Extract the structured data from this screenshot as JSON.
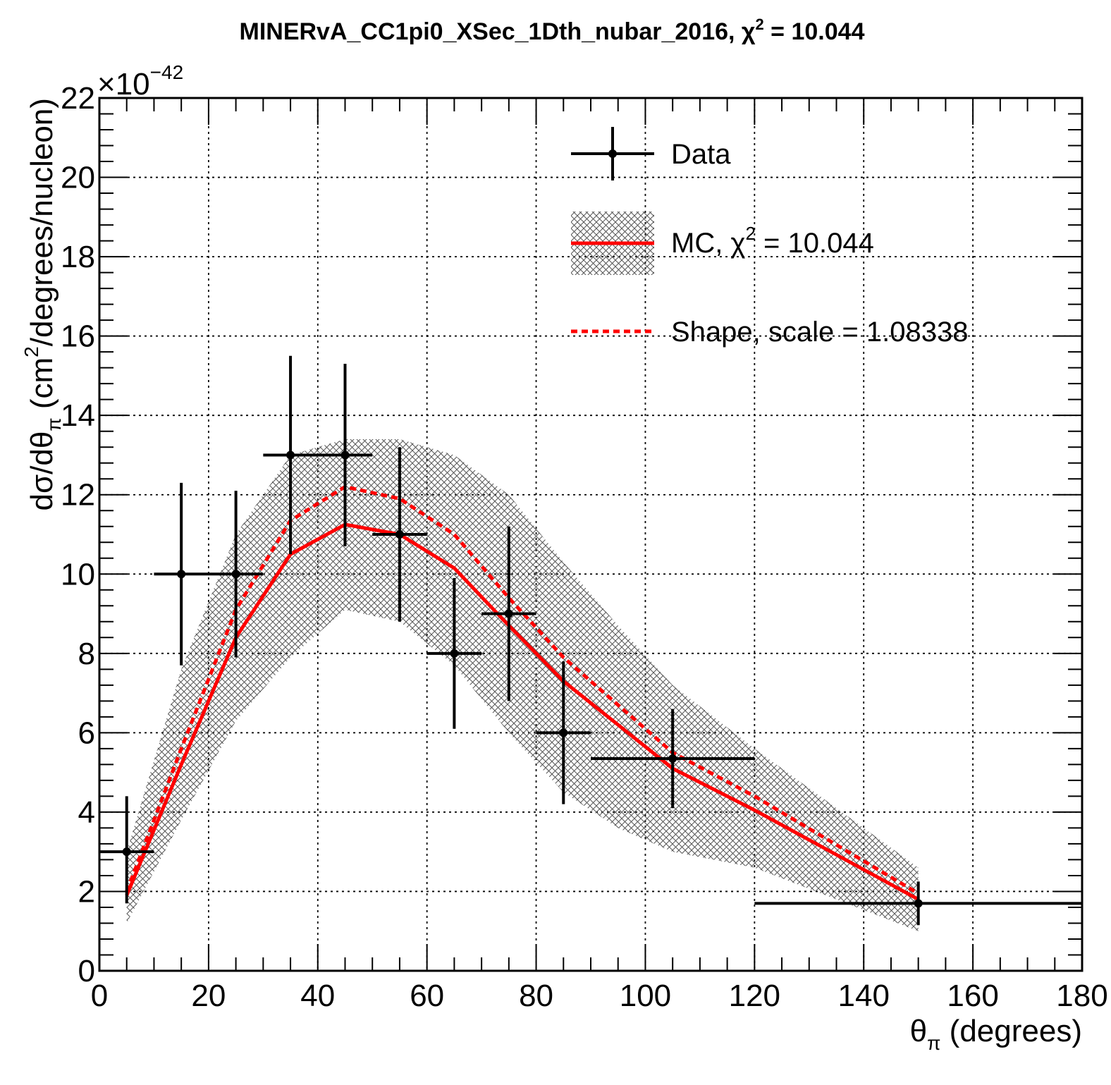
{
  "chart_data": {
    "type": "line",
    "title": "MINERvA_CC1pi0_XSec_1Dth_nubar_2016, χ² = 10.044",
    "title_text": "MINERvA_CC1pi0_XSec_1Dth_nubar_2016, χ",
    "title_sup": "2",
    "title_tail": " = 10.044",
    "xlabel_main": "θ",
    "xlabel_sub": "π",
    "xlabel_tail": " (degrees)",
    "ylabel_pre": "dσ/dθ",
    "ylabel_sub": "π",
    "ylabel_mid": " (cm",
    "ylabel_sup": "2",
    "ylabel_tail": "/degrees/nucleon)",
    "exponent_base": "×10",
    "exponent_power": "−42",
    "xlim": [
      0,
      180
    ],
    "ylim": [
      0,
      22
    ],
    "x_ticks": [
      0,
      20,
      40,
      60,
      80,
      100,
      120,
      140,
      160,
      180
    ],
    "x_tick_labels": [
      "0",
      "20",
      "40",
      "60",
      "80",
      "100",
      "120",
      "140",
      "160",
      "180"
    ],
    "y_ticks": [
      0,
      2,
      4,
      6,
      8,
      10,
      12,
      14,
      16,
      18,
      20,
      22
    ],
    "y_tick_labels": [
      "0",
      "2",
      "4",
      "6",
      "8",
      "10",
      "12",
      "14",
      "16",
      "18",
      "20",
      "22"
    ],
    "grid": true,
    "legend_position": "top-right",
    "legend": {
      "data_label": "Data",
      "mc_label": "MC, χ",
      "mc_sup": "2",
      "mc_tail": " = 10.044",
      "shape_label": "Shape, scale = 1.08338"
    },
    "series": [
      {
        "name": "Data",
        "kind": "points_with_errors",
        "color": "#000000",
        "points": [
          {
            "x": 5,
            "x_lo": 0,
            "x_hi": 10,
            "y": 3.0,
            "y_lo": 1.7,
            "y_hi": 4.4
          },
          {
            "x": 15,
            "x_lo": 10,
            "x_hi": 20,
            "y": 10.0,
            "y_lo": 7.7,
            "y_hi": 12.3
          },
          {
            "x": 25,
            "x_lo": 20,
            "x_hi": 30,
            "y": 10.0,
            "y_lo": 7.9,
            "y_hi": 12.1
          },
          {
            "x": 35,
            "x_lo": 30,
            "x_hi": 40,
            "y": 13.0,
            "y_lo": 10.5,
            "y_hi": 15.5
          },
          {
            "x": 45,
            "x_lo": 40,
            "x_hi": 50,
            "y": 13.0,
            "y_lo": 10.7,
            "y_hi": 15.3
          },
          {
            "x": 55,
            "x_lo": 50,
            "x_hi": 60,
            "y": 11.0,
            "y_lo": 8.8,
            "y_hi": 13.2
          },
          {
            "x": 65,
            "x_lo": 60,
            "x_hi": 70,
            "y": 8.0,
            "y_lo": 6.1,
            "y_hi": 9.9
          },
          {
            "x": 75,
            "x_lo": 70,
            "x_hi": 80,
            "y": 9.0,
            "y_lo": 6.8,
            "y_hi": 11.2
          },
          {
            "x": 85,
            "x_lo": 80,
            "x_hi": 90,
            "y": 6.0,
            "y_lo": 4.2,
            "y_hi": 7.8
          },
          {
            "x": 105,
            "x_lo": 90,
            "x_hi": 120,
            "y": 5.35,
            "y_lo": 4.1,
            "y_hi": 6.6
          },
          {
            "x": 150,
            "x_lo": 120,
            "x_hi": 180,
            "y": 1.7,
            "y_lo": 1.15,
            "y_hi": 2.25
          }
        ]
      },
      {
        "name": "MC, χ² = 10.044",
        "kind": "line",
        "color": "#ff0000",
        "x": [
          5,
          15,
          25,
          35,
          45,
          55,
          65,
          75,
          85,
          95,
          105,
          120,
          150
        ],
        "y": [
          1.9,
          5.2,
          8.4,
          10.5,
          11.25,
          11.0,
          10.15,
          8.7,
          7.3,
          6.2,
          5.1,
          4.05,
          1.8
        ]
      },
      {
        "name": "MC uncertainty band",
        "kind": "band",
        "color": "#555555",
        "x": [
          5,
          15,
          25,
          35,
          45,
          55,
          65,
          75,
          85,
          95,
          105,
          120,
          150
        ],
        "y_lo": [
          1.2,
          3.8,
          6.3,
          7.9,
          9.1,
          8.8,
          7.7,
          6.0,
          4.5,
          3.6,
          3.0,
          2.6,
          1.0
        ],
        "y_hi": [
          3.0,
          7.6,
          11.0,
          13.0,
          13.4,
          13.4,
          13.0,
          12.0,
          10.3,
          8.7,
          7.2,
          5.6,
          2.6
        ]
      },
      {
        "name": "Shape, scale = 1.08338",
        "kind": "dashed_line",
        "color": "#ff0000",
        "x": [
          5,
          15,
          25,
          35,
          45,
          55,
          65,
          75,
          85,
          95,
          105,
          120,
          150
        ],
        "y": [
          2.0,
          5.6,
          9.1,
          11.35,
          12.2,
          11.9,
          11.0,
          9.4,
          7.9,
          6.7,
          5.5,
          4.4,
          1.95
        ]
      }
    ]
  }
}
